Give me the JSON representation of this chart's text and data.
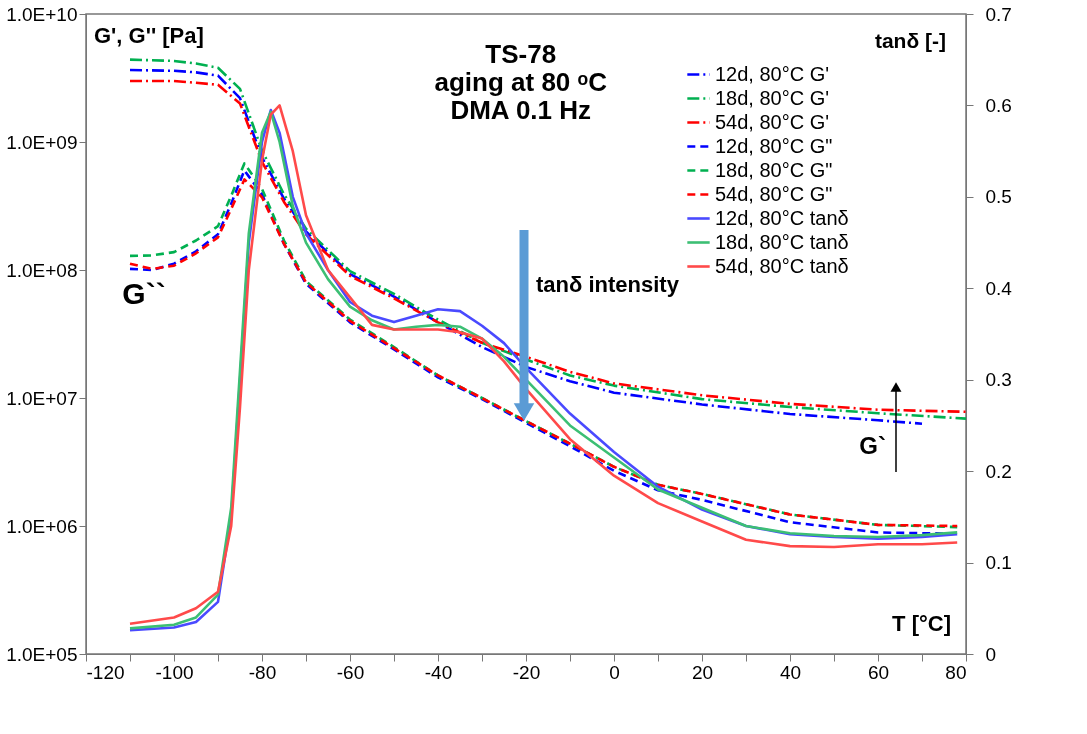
{
  "chart_data": {
    "type": "line",
    "title": "TS-78\naging at 80 ᵒC\nDMA 0.1 Hz",
    "xlabel": "T [°C]",
    "ylabel": "G', G'' [Pa]",
    "y2label": "tanδ [-]",
    "xlim": [
      -120,
      80
    ],
    "xticks": [
      -120,
      {
        "value": -110,
        "label": null
      },
      -100,
      {
        "value": -90,
        "label": null
      },
      -80,
      {
        "value": -70,
        "label": null
      },
      -60,
      {
        "value": -50,
        "label": null
      },
      -40,
      {
        "value": -30,
        "label": null
      },
      -20,
      {
        "value": -10,
        "label": null
      },
      0,
      {
        "value": 10,
        "label": null
      },
      20,
      {
        "value": 30,
        "label": null
      },
      40,
      {
        "value": 50,
        "label": null
      },
      60,
      {
        "value": 70,
        "label": null
      },
      80
    ],
    "ylim": [
      100000,
      10000000000
    ],
    "log": "y",
    "yticks": [
      {
        "value": 100000,
        "label": "1.0E+05"
      },
      {
        "value": 1000000,
        "label": "1.0E+06"
      },
      {
        "value": 10000000,
        "label": "1.0E+07"
      },
      {
        "value": 100000000,
        "label": "1.0E+08"
      },
      {
        "value": 1000000000,
        "label": "1.0E+09"
      },
      {
        "value": 10000000000,
        "label": "1.0E+10"
      }
    ],
    "y2lim": [
      0,
      0.7
    ],
    "y2ticks": [
      0,
      0.1,
      0.2,
      0.3,
      0.4,
      0.5,
      0.6,
      0.7
    ],
    "grid": false,
    "legend": "top right",
    "marker": "none",
    "annotations": [
      "G``",
      "tanδ intensity",
      "G`"
    ],
    "series": [
      {
        "name": "12d, 80°C G'",
        "color": "#0000ff",
        "line_style": "dashdot",
        "x": [
          -110,
          -100,
          -95,
          -90,
          -85,
          -80,
          -75,
          -70,
          -60,
          -50,
          -40,
          -30,
          -20,
          -10,
          0,
          20,
          40,
          60,
          70
        ],
        "values": [
          3650000000.0,
          3600000000.0,
          3500000000.0,
          3300000000.0,
          2200000000.0,
          760000000.0,
          360000000.0,
          200000000.0,
          93000000.0,
          62000000.0,
          39000000.0,
          25000000.0,
          17500000.0,
          13500000.0,
          11000000.0,
          8900000.0,
          7500000.0,
          6700000.0,
          6300000.0
        ]
      },
      {
        "name": "18d, 80°C G'",
        "color": "#00b050",
        "line_style": "dashdot",
        "x": [
          -110,
          -100,
          -95,
          -90,
          -85,
          -80,
          -75,
          -70,
          -60,
          -50,
          -40,
          -30,
          -20,
          -10,
          0,
          20,
          40,
          60,
          80
        ],
        "values": [
          4400000000.0,
          4300000000.0,
          4100000000.0,
          3800000000.0,
          2600000000.0,
          860000000.0,
          390000000.0,
          210000000.0,
          98000000.0,
          65000000.0,
          41000000.0,
          27000000.0,
          20000000.0,
          15000000.0,
          12500000.0,
          9800000.0,
          8500000.0,
          7600000.0,
          6900000.0
        ]
      },
      {
        "name": "54d, 80°C G'",
        "color": "#ff0000",
        "line_style": "dashdot",
        "x": [
          -110,
          -100,
          -95,
          -90,
          -85,
          -80,
          -75,
          -70,
          -60,
          -50,
          -40,
          -30,
          -20,
          -10,
          0,
          20,
          40,
          60,
          80
        ],
        "values": [
          3000000000.0,
          3000000000.0,
          2900000000.0,
          2800000000.0,
          2000000000.0,
          700000000.0,
          340000000.0,
          190000000.0,
          90000000.0,
          60000000.0,
          39000000.0,
          27000000.0,
          21000000.0,
          16000000.0,
          13000000.0,
          10500000.0,
          9000000.0,
          8100000.0,
          7800000.0
        ]
      },
      {
        "name": "12d, 80°C G\"",
        "color": "#0000ff",
        "line_style": "dashed",
        "x": [
          -110,
          -105,
          -100,
          -95,
          -90,
          -87,
          -84,
          -80,
          -75,
          -70,
          -60,
          -50,
          -40,
          -30,
          -20,
          -10,
          0,
          10,
          20,
          40,
          60,
          78
        ],
        "values": [
          102000000.0,
          100000000.0,
          112000000.0,
          140000000.0,
          190000000.0,
          330000000.0,
          600000000.0,
          390000000.0,
          160000000.0,
          78000000.0,
          39000000.0,
          24000000.0,
          14500000.0,
          9800000.0,
          6400000.0,
          4200000.0,
          2700000.0,
          1900000.0,
          1600000.0,
          1070000.0,
          890000.0,
          870000.0
        ]
      },
      {
        "name": "18d, 80°C G\"",
        "color": "#00b050",
        "line_style": "dashed",
        "x": [
          -110,
          -105,
          -100,
          -95,
          -90,
          -87,
          -84,
          -80,
          -75,
          -70,
          -60,
          -50,
          -40,
          -30,
          -20,
          -10,
          0,
          10,
          20,
          40,
          60,
          78
        ],
        "values": [
          129000000.0,
          130000000.0,
          138000000.0,
          170000000.0,
          220000000.0,
          380000000.0,
          680000000.0,
          430000000.0,
          170000000.0,
          82000000.0,
          41000000.0,
          25000000.0,
          15000000.0,
          10000000.0,
          6600000.0,
          4400000.0,
          2900000.0,
          2100000.0,
          1780000.0,
          1230000.0,
          1020000.0,
          980000.0
        ]
      },
      {
        "name": "54d, 80°C G\"",
        "color": "#ff0000",
        "line_style": "dashed",
        "x": [
          -110,
          -105,
          -100,
          -95,
          -90,
          -87,
          -84,
          -80,
          -75,
          -70,
          -60,
          -50,
          -40,
          -30,
          -20,
          -10,
          0,
          10,
          20,
          40,
          60,
          78
        ],
        "values": [
          112000000.0,
          102000000.0,
          108000000.0,
          135000000.0,
          180000000.0,
          300000000.0,
          510000000.0,
          370000000.0,
          160000000.0,
          80000000.0,
          40000000.0,
          24500000.0,
          15000000.0,
          10000000.0,
          6600000.0,
          4400000.0,
          2900000.0,
          2100000.0,
          1780000.0,
          1230000.0,
          1020000.0,
          1000000.0
        ]
      },
      {
        "name": "12d, 80°C tanδ",
        "color": "#4a4aff",
        "line_style": "solid",
        "axis": "y2",
        "x": [
          -110,
          -100,
          -95,
          -90,
          -87,
          -85,
          -83,
          -80,
          -78,
          -76,
          -73,
          -70,
          -65,
          -60,
          -55,
          -50,
          -45,
          -40,
          -35,
          -30,
          -25,
          -20,
          -10,
          0,
          10,
          20,
          30,
          40,
          50,
          60,
          70,
          78
        ],
        "values": [
          0.026,
          0.029,
          0.035,
          0.057,
          0.15,
          0.3,
          0.45,
          0.56,
          0.595,
          0.57,
          0.5,
          0.46,
          0.42,
          0.385,
          0.37,
          0.363,
          0.37,
          0.377,
          0.375,
          0.359,
          0.34,
          0.313,
          0.263,
          0.221,
          0.183,
          0.158,
          0.14,
          0.131,
          0.128,
          0.126,
          0.128,
          0.131
        ]
      },
      {
        "name": "18d, 80°C tanδ",
        "color": "#3cbf74",
        "line_style": "solid",
        "axis": "y2",
        "x": [
          -110,
          -100,
          -95,
          -90,
          -87,
          -85,
          -83,
          -80,
          -78,
          -76,
          -73,
          -70,
          -65,
          -60,
          -55,
          -50,
          -45,
          -40,
          -35,
          -30,
          -25,
          -20,
          -10,
          0,
          10,
          20,
          30,
          40,
          50,
          60,
          70,
          78
        ],
        "values": [
          0.028,
          0.032,
          0.04,
          0.065,
          0.16,
          0.31,
          0.46,
          0.57,
          0.593,
          0.56,
          0.49,
          0.45,
          0.41,
          0.38,
          0.365,
          0.355,
          0.358,
          0.36,
          0.358,
          0.345,
          0.325,
          0.3,
          0.25,
          0.215,
          0.18,
          0.16,
          0.14,
          0.132,
          0.129,
          0.128,
          0.13,
          0.133
        ]
      },
      {
        "name": "54d, 80°C tanδ",
        "color": "#ff4a4a",
        "line_style": "solid",
        "axis": "y2",
        "x": [
          -110,
          -100,
          -95,
          -90,
          -87,
          -85,
          -83,
          -80,
          -78,
          -76,
          -73,
          -70,
          -65,
          -60,
          -55,
          -50,
          -45,
          -40,
          -35,
          -30,
          -25,
          -20,
          -10,
          0,
          10,
          20,
          30,
          40,
          50,
          60,
          70,
          78
        ],
        "values": [
          0.033,
          0.04,
          0.05,
          0.068,
          0.14,
          0.27,
          0.42,
          0.54,
          0.59,
          0.6,
          0.55,
          0.48,
          0.42,
          0.39,
          0.36,
          0.355,
          0.355,
          0.355,
          0.352,
          0.345,
          0.32,
          0.29,
          0.235,
          0.195,
          0.165,
          0.145,
          0.125,
          0.118,
          0.117,
          0.12,
          0.12,
          0.122
        ]
      }
    ]
  }
}
